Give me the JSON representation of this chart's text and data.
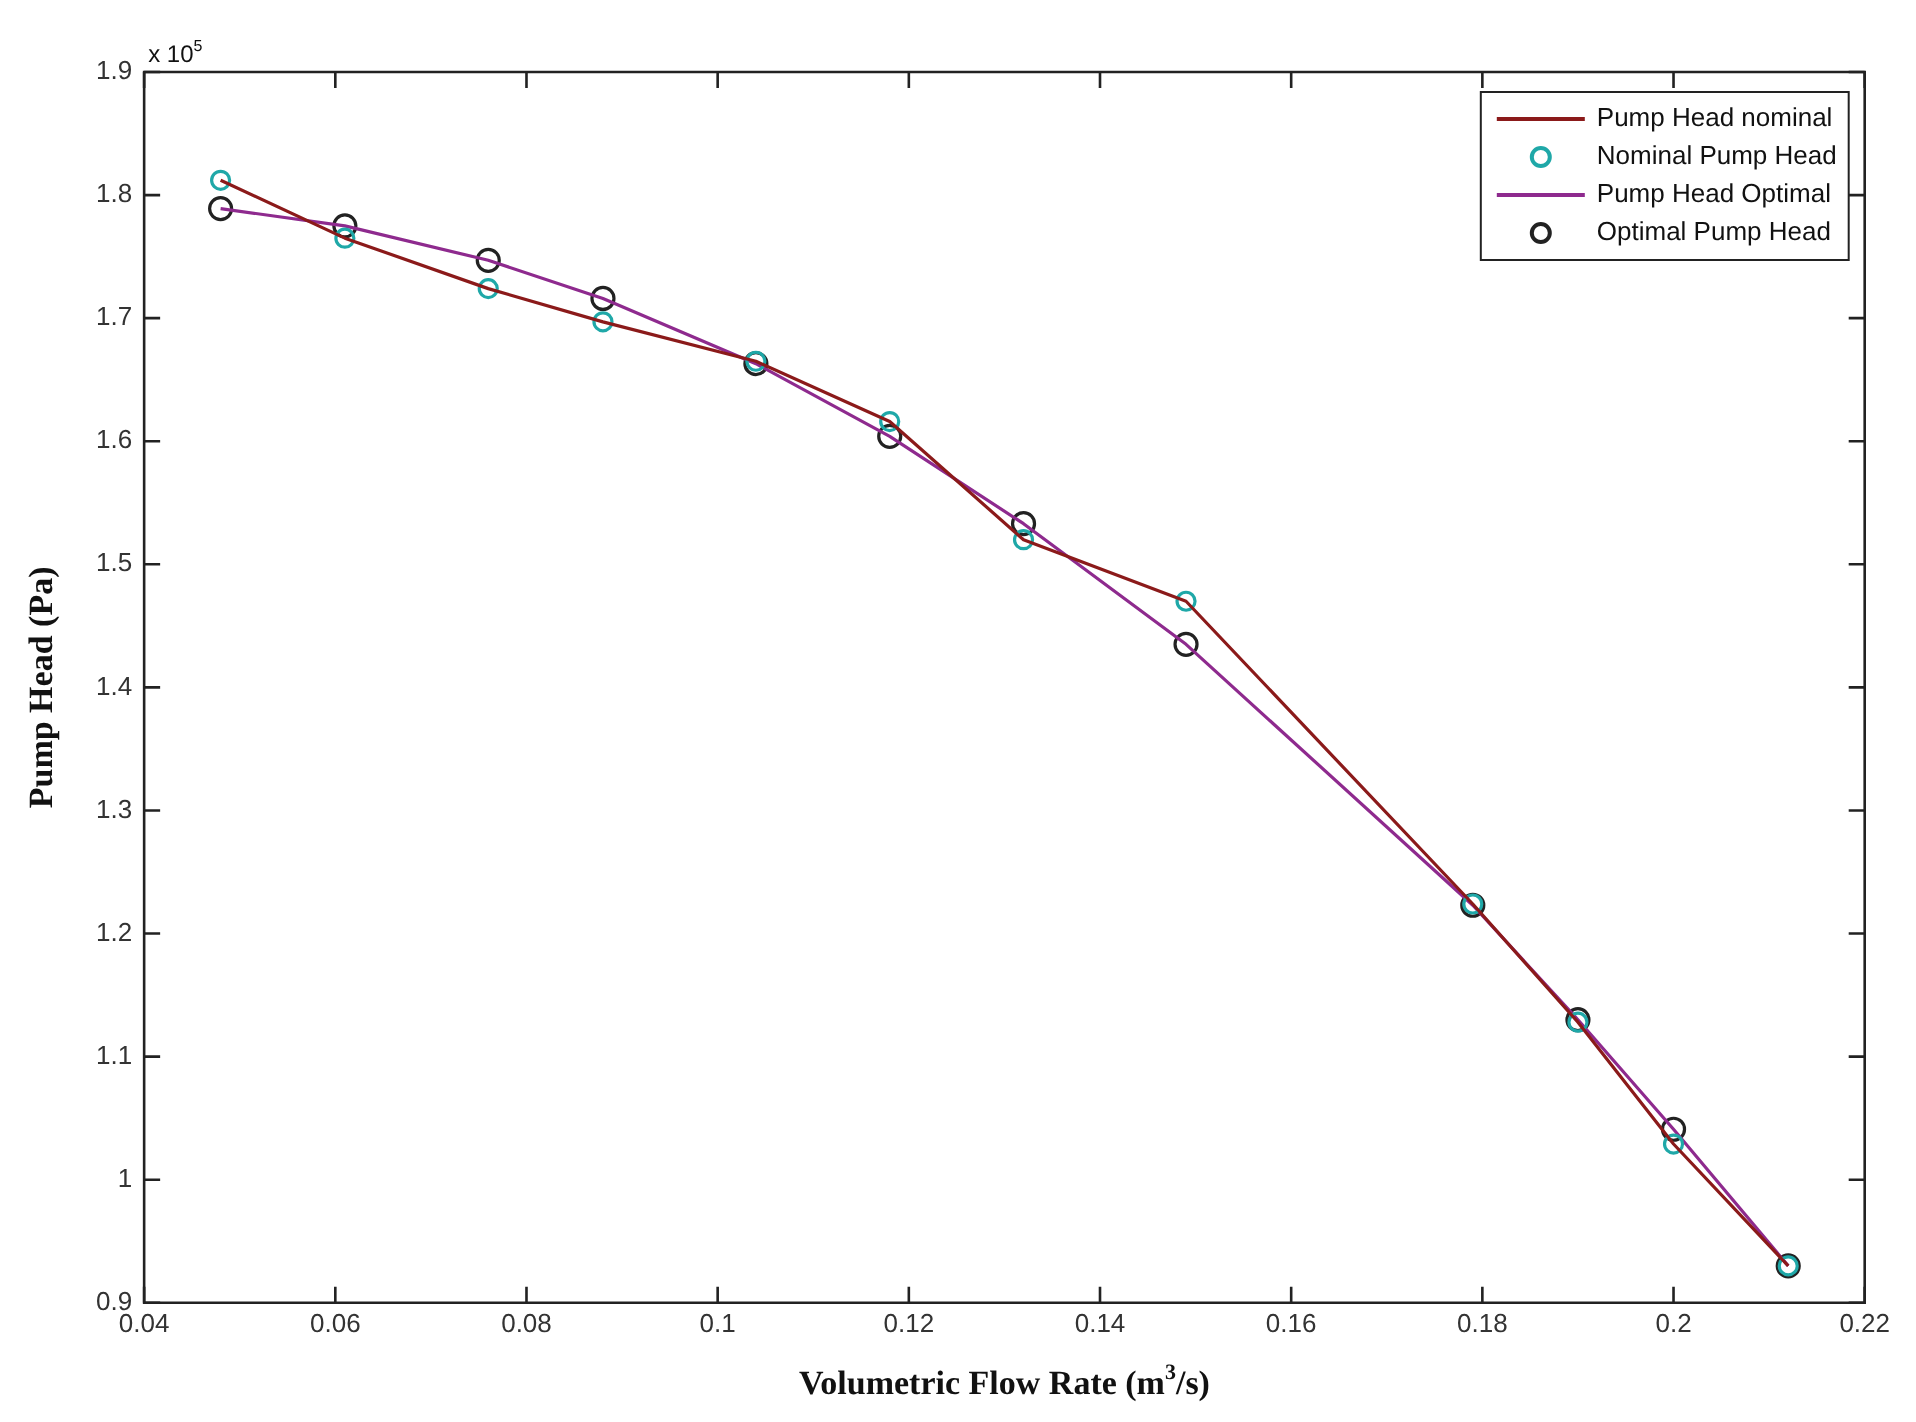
{
  "chart_data": {
    "type": "line",
    "xlabel": "Volumetric Flow Rate (m$^{3}$/s)",
    "ylabel": "Pump Head (Pa)",
    "annotations": [
      "x 10$^{5}$"
    ],
    "xlim": [
      0.04,
      0.22
    ],
    "xticks": [
      0.04,
      0.06,
      0.08,
      0.1,
      0.12,
      0.14,
      0.16,
      0.18,
      0.2,
      0.22
    ],
    "ylim": [
      0.9,
      1.9
    ],
    "yticks": [
      0.9,
      1,
      1.1,
      1.2,
      1.3,
      1.4,
      1.5,
      1.6,
      1.7,
      1.8,
      1.9
    ],
    "grid": false,
    "legend": "top right",
    "series": [
      {
        "name": "Pump Head nominal",
        "type": "line",
        "marker": "none",
        "color": "#8b1a1a",
        "x": [
          0.048,
          0.061,
          0.076,
          0.088,
          0.104,
          0.118,
          0.132,
          0.149,
          0.179,
          0.19,
          0.2,
          0.212
        ],
        "values": [
          1.812,
          1.765,
          1.724,
          1.697,
          1.665,
          1.616,
          1.52,
          1.47,
          1.224,
          1.128,
          1.029,
          0.93
        ]
      },
      {
        "name": "Nominal Pump Head",
        "type": "scatter",
        "marker": "circle",
        "color": "#1fa8a8",
        "x": [
          0.048,
          0.061,
          0.076,
          0.088,
          0.104,
          0.118,
          0.132,
          0.149,
          0.179,
          0.19,
          0.2,
          0.212
        ],
        "values": [
          1.812,
          1.765,
          1.724,
          1.697,
          1.665,
          1.616,
          1.52,
          1.47,
          1.224,
          1.128,
          1.029,
          0.93
        ]
      },
      {
        "name": "Pump Head Optimal",
        "type": "line",
        "marker": "none",
        "color": "#8e2a8e",
        "x": [
          0.048,
          0.061,
          0.076,
          0.088,
          0.104,
          0.118,
          0.132,
          0.149,
          0.179,
          0.19,
          0.2,
          0.212
        ],
        "values": [
          1.789,
          1.775,
          1.747,
          1.716,
          1.663,
          1.604,
          1.533,
          1.435,
          1.223,
          1.13,
          1.041,
          0.93
        ]
      },
      {
        "name": "Optimal Pump Head",
        "type": "scatter",
        "marker": "circle",
        "color": "#222222",
        "x": [
          0.048,
          0.061,
          0.076,
          0.088,
          0.104,
          0.118,
          0.132,
          0.149,
          0.179,
          0.19,
          0.2,
          0.212
        ],
        "values": [
          1.789,
          1.775,
          1.747,
          1.716,
          1.663,
          1.604,
          1.533,
          1.435,
          1.223,
          1.13,
          1.041,
          0.93
        ]
      }
    ]
  }
}
